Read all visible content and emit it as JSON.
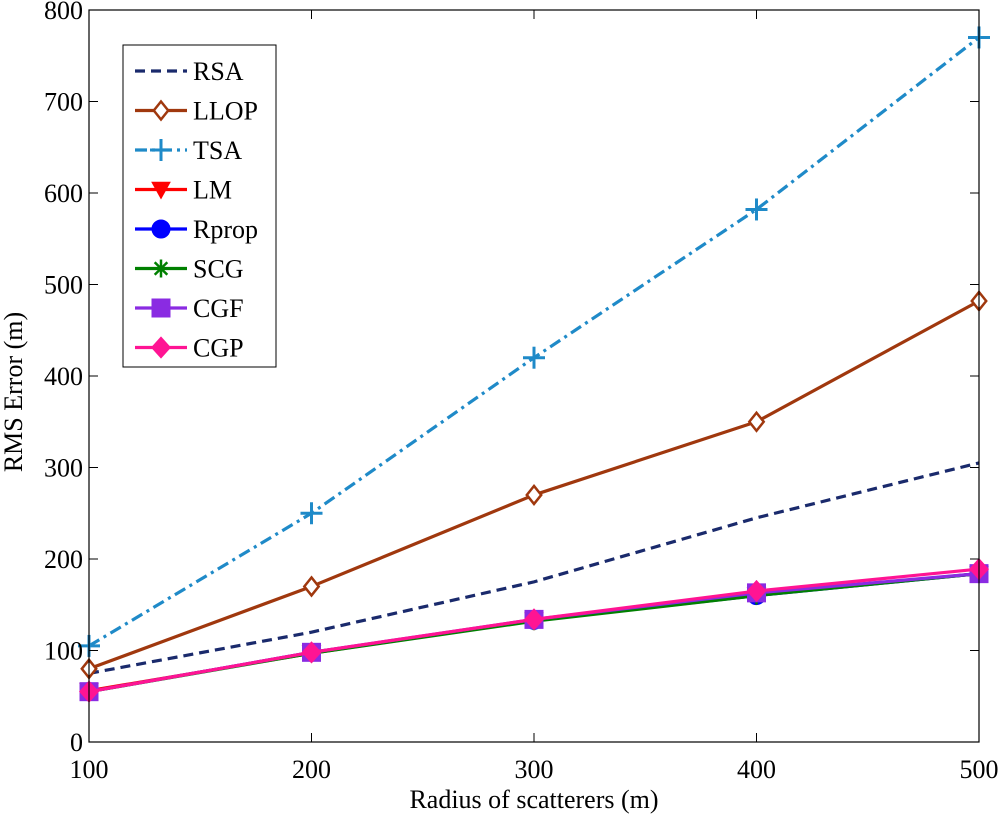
{
  "chart_data": {
    "type": "line",
    "xlabel": "Radius of scatterers (m)",
    "ylabel": "RMS Error (m)",
    "xlim": [
      100,
      500
    ],
    "ylim": [
      0,
      800
    ],
    "xticks": [
      100,
      200,
      300,
      400,
      500
    ],
    "yticks": [
      0,
      100,
      200,
      300,
      400,
      500,
      600,
      700,
      800
    ],
    "x": [
      100,
      200,
      300,
      400,
      500
    ],
    "legend_position": "top-left",
    "series": [
      {
        "name": "RSA",
        "values": [
          75,
          120,
          175,
          245,
          305
        ],
        "color": "#1a2a6c",
        "marker": "none",
        "dash": "dashed"
      },
      {
        "name": "LLOP",
        "values": [
          80,
          170,
          270,
          350,
          482
        ],
        "color": "#a0380e",
        "marker": "diamond-open",
        "dash": "solid"
      },
      {
        "name": "TSA",
        "values": [
          105,
          250,
          420,
          582,
          770
        ],
        "color": "#1f8ac8",
        "marker": "plus",
        "dash": "dashdot"
      },
      {
        "name": "LM",
        "values": [
          56,
          97,
          133,
          161,
          184
        ],
        "color": "#ff0000",
        "marker": "triangle-down",
        "dash": "solid"
      },
      {
        "name": "Rprop",
        "values": [
          55,
          98,
          133,
          160,
          184
        ],
        "color": "#0000ff",
        "marker": "circle",
        "dash": "solid"
      },
      {
        "name": "SCG",
        "values": [
          55,
          97,
          132,
          160,
          184
        ],
        "color": "#008000",
        "marker": "asterisk",
        "dash": "solid"
      },
      {
        "name": "CGF",
        "values": [
          55,
          98,
          134,
          163,
          184
        ],
        "color": "#8a2be2",
        "marker": "square",
        "dash": "solid"
      },
      {
        "name": "CGP",
        "values": [
          55,
          98,
          134,
          165,
          189
        ],
        "color": "#ff1493",
        "marker": "diamond",
        "dash": "solid"
      }
    ]
  }
}
